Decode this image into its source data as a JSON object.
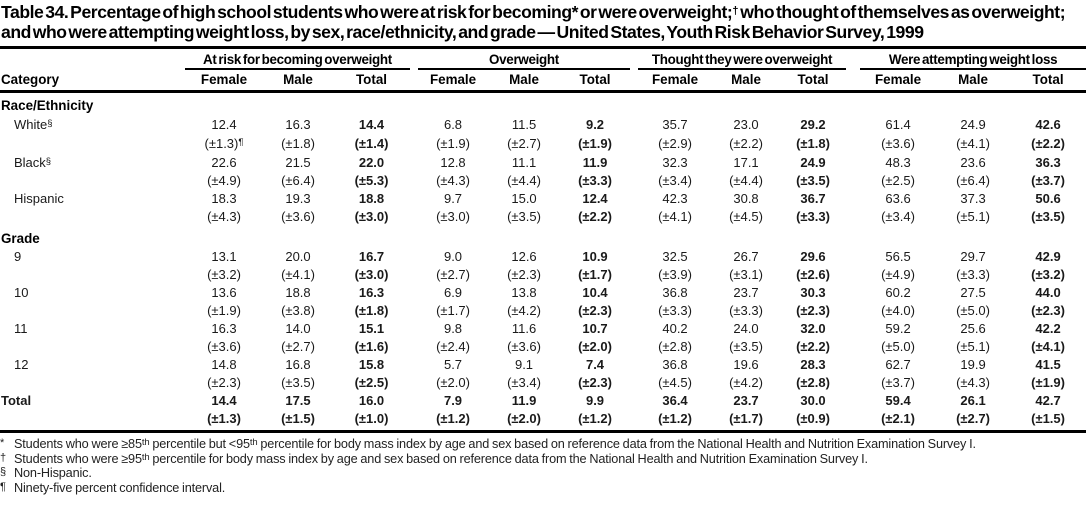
{
  "title": {
    "segments": [
      {
        "text": "Table 34. Percentage of high school students who were at risk for becoming* or were overweight;"
      },
      {
        "text": "†",
        "sup": true
      },
      {
        "text": " who thought of themselves as overweight; and who were attempting weight loss, by sex, race/ethnicity, and grade — United States, Youth Risk Behavior Survey, 1999"
      }
    ]
  },
  "table": {
    "category_header": "Category",
    "groups": [
      "At risk for becoming overweight",
      "Overweight",
      "Thought they were overweight",
      "Were attempting weight loss"
    ],
    "sub_headers": [
      "Female",
      "Male",
      "Total"
    ],
    "sections": [
      {
        "label": "Race/Ethnicity",
        "rows": [
          {
            "category": "White",
            "sup": "§",
            "values": [
              "12.4",
              "16.3",
              "14.4",
              "6.8",
              "11.5",
              "9.2",
              "35.7",
              "23.0",
              "29.2",
              "61.4",
              "24.9",
              "42.6"
            ],
            "cis": [
              "(±1.3)",
              "(±1.8)",
              "(±1.4)",
              "(±1.9)",
              "(±2.7)",
              "(±1.9)",
              "(±2.9)",
              "(±2.2)",
              "(±1.8)",
              "(±3.6)",
              "(±4.1)",
              "(±2.2)"
            ],
            "ci_sups": [
              "¶",
              "",
              "",
              "",
              "",
              "",
              "",
              "",
              "",
              "",
              "",
              ""
            ]
          },
          {
            "category": "Black",
            "sup": "§",
            "values": [
              "22.6",
              "21.5",
              "22.0",
              "12.8",
              "11.1",
              "11.9",
              "32.3",
              "17.1",
              "24.9",
              "48.3",
              "23.6",
              "36.3"
            ],
            "cis": [
              "(±4.9)",
              "(±6.4)",
              "(±5.3)",
              "(±4.3)",
              "(±4.4)",
              "(±3.3)",
              "(±3.4)",
              "(±4.4)",
              "(±3.5)",
              "(±2.5)",
              "(±6.4)",
              "(±3.7)"
            ]
          },
          {
            "category": "Hispanic",
            "values": [
              "18.3",
              "19.3",
              "18.8",
              "9.7",
              "15.0",
              "12.4",
              "42.3",
              "30.8",
              "36.7",
              "63.6",
              "37.3",
              "50.6"
            ],
            "cis": [
              "(±4.3)",
              "(±3.6)",
              "(±3.0)",
              "(±3.0)",
              "(±3.5)",
              "(±2.2)",
              "(±4.1)",
              "(±4.5)",
              "(±3.3)",
              "(±3.4)",
              "(±5.1)",
              "(±3.5)"
            ]
          }
        ]
      },
      {
        "label": "Grade",
        "rows": [
          {
            "category": "9",
            "values": [
              "13.1",
              "20.0",
              "16.7",
              "9.0",
              "12.6",
              "10.9",
              "32.5",
              "26.7",
              "29.6",
              "56.5",
              "29.7",
              "42.9"
            ],
            "cis": [
              "(±3.2)",
              "(±4.1)",
              "(±3.0)",
              "(±2.7)",
              "(±2.3)",
              "(±1.7)",
              "(±3.9)",
              "(±3.1)",
              "(±2.6)",
              "(±4.9)",
              "(±3.3)",
              "(±3.2)"
            ]
          },
          {
            "category": "10",
            "values": [
              "13.6",
              "18.8",
              "16.3",
              "6.9",
              "13.8",
              "10.4",
              "36.8",
              "23.7",
              "30.3",
              "60.2",
              "27.5",
              "44.0"
            ],
            "cis": [
              "(±1.9)",
              "(±3.8)",
              "(±1.8)",
              "(±1.7)",
              "(±4.2)",
              "(±2.3)",
              "(±3.3)",
              "(±3.3)",
              "(±2.3)",
              "(±4.0)",
              "(±5.0)",
              "(±2.3)"
            ]
          },
          {
            "category": "11",
            "values": [
              "16.3",
              "14.0",
              "15.1",
              "9.8",
              "11.6",
              "10.7",
              "40.2",
              "24.0",
              "32.0",
              "59.2",
              "25.6",
              "42.2"
            ],
            "cis": [
              "(±3.6)",
              "(±2.7)",
              "(±1.6)",
              "(±2.4)",
              "(±3.6)",
              "(±2.0)",
              "(±2.8)",
              "(±3.5)",
              "(±2.2)",
              "(±5.0)",
              "(±5.1)",
              "(±4.1)"
            ]
          },
          {
            "category": "12",
            "values": [
              "14.8",
              "16.8",
              "15.8",
              "5.7",
              "9.1",
              "7.4",
              "36.8",
              "19.6",
              "28.3",
              "62.7",
              "19.9",
              "41.5"
            ],
            "cis": [
              "(±2.3)",
              "(±3.5)",
              "(±2.5)",
              "(±2.0)",
              "(±3.4)",
              "(±2.3)",
              "(±4.5)",
              "(±4.2)",
              "(±2.8)",
              "(±3.7)",
              "(±4.3)",
              "(±1.9)"
            ]
          }
        ]
      }
    ],
    "total_row": {
      "category": "Total",
      "values": [
        "14.4",
        "17.5",
        "16.0",
        "7.9",
        "11.9",
        "9.9",
        "36.4",
        "23.7",
        "30.0",
        "59.4",
        "26.1",
        "42.7"
      ],
      "cis": [
        "(±1.3)",
        "(±1.5)",
        "(±1.0)",
        "(±1.2)",
        "(±2.0)",
        "(±1.2)",
        "(±1.2)",
        "(±1.7)",
        "(±0.9)",
        "(±2.1)",
        "(±2.7)",
        "(±1.5)"
      ]
    }
  },
  "footnotes": [
    {
      "marker": "*",
      "segments": [
        {
          "text": "Students who were ≥85"
        },
        {
          "text": "th",
          "sup": true
        },
        {
          "text": " percentile but <95"
        },
        {
          "text": "th",
          "sup": true
        },
        {
          "text": " percentile for body mass index by age and sex based on reference data from the National Health and Nutrition Examination Survey I."
        }
      ]
    },
    {
      "marker": "†",
      "segments": [
        {
          "text": "Students who were ≥95"
        },
        {
          "text": "th",
          "sup": true
        },
        {
          "text": " percentile for body mass index by age and sex based on reference data from the National Health and Nutrition Examination Survey I."
        }
      ]
    },
    {
      "marker": "§",
      "segments": [
        {
          "text": "Non-Hispanic."
        }
      ]
    },
    {
      "marker": "¶",
      "segments": [
        {
          "text": "Ninety-five percent confidence interval."
        }
      ]
    }
  ]
}
